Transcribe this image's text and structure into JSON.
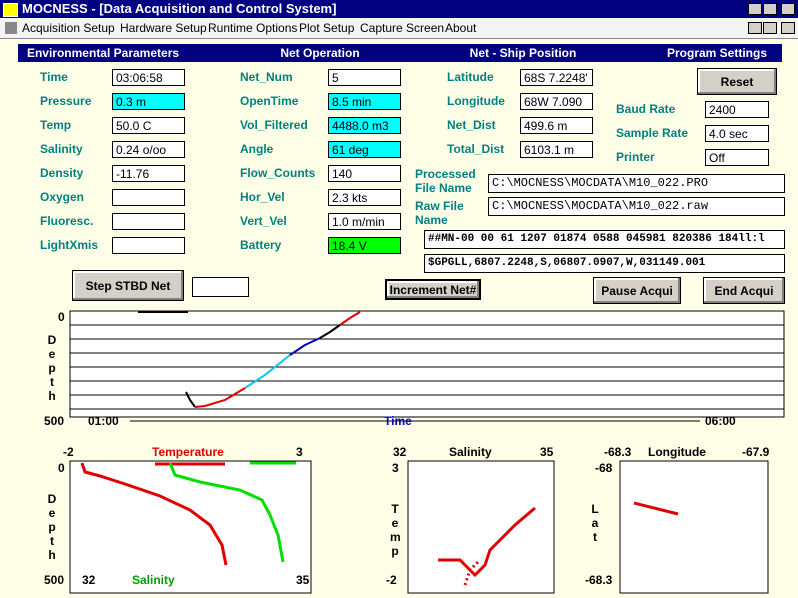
{
  "title": "MOCNESS - [Data Acquisition and Control System]",
  "menu": [
    "Acquisition Setup",
    "Hardware Setup",
    "Runtime Options",
    "Plot Setup",
    "Capture Screen",
    "About"
  ],
  "sections": [
    "Environmental Parameters",
    "Net Operation",
    "Net - Ship Position",
    "Program Settings"
  ],
  "environmental": [
    {
      "label": "Time",
      "value": "03:06:58"
    },
    {
      "label": "Pressure",
      "value": "0.3 m",
      "color": "#00ffff"
    },
    {
      "label": "Temp",
      "value": "50.0 C"
    },
    {
      "label": "Salinity",
      "value": "0.24 o/oo"
    },
    {
      "label": "Density",
      "value": "-11.76"
    },
    {
      "label": "Oxygen"
    },
    {
      "label": "Fluoresc."
    },
    {
      "label": "LightXmis"
    }
  ],
  "net_operation": [
    {
      "label": "Net_Num",
      "value": "5"
    },
    {
      "label": "OpenTime",
      "value": "8.5 min",
      "color": "#00ffff"
    },
    {
      "label": "Vol_Filtered",
      "value": "4488.0 m3",
      "color": "#00ffff"
    },
    {
      "label": "Angle",
      "value": "61 deg",
      "color": "#00ffff"
    },
    {
      "label": "Flow_Counts",
      "value": "140"
    },
    {
      "label": "Hor_Vel",
      "value": "2.3 kts"
    },
    {
      "label": "Vert_Vel",
      "value": "1.0 m/min"
    },
    {
      "label": "Battery",
      "value": "18.4 V",
      "color": "#00ff00"
    }
  ],
  "position": [
    {
      "label": "Latitude",
      "value": "68S 7.2248'"
    },
    {
      "label": "Longitude",
      "value": "68W 7.090"
    },
    {
      "label": "Net_Dist",
      "value": "499.6 m"
    },
    {
      "label": "Total_Dist",
      "value": "6103.1 m"
    }
  ],
  "settings": [
    {
      "label": "Baud Rate",
      "value": "2400"
    },
    {
      "label": "Sample Rate",
      "value": "4.0 sec"
    },
    {
      "label": "Printer",
      "value": "Off"
    }
  ],
  "buttons": {
    "reset": "Reset",
    "step": "Step STBD Net",
    "increment": "Increment Net#",
    "pause": "Pause Acqui",
    "end": "End Acqui"
  },
  "files": {
    "processed_label": "Processed File Name",
    "processed": "C:\\MOCNESS\\MOCDATA\\M10_022.PRO",
    "raw_label": "Raw File Name",
    "raw": "C:\\MOCNESS\\MOCDATA\\M10_022.raw"
  },
  "streams": [
    "##MN-00 00 61 1207 01874 0588 045981 820386 184ll:l",
    "$GPGLL,6807.2248,S,06807.0907,W,031149.001"
  ],
  "depth_plot": {
    "ylabel": "Depth",
    "ytop": "0",
    "ybottom": "500",
    "xstart": "01:00",
    "xlabel": "Time",
    "xend": "06:00"
  },
  "profile_plot": {
    "top_left": "-2",
    "top_label": "Temperature",
    "top_right": "3",
    "bottom_left": "32",
    "bottom_label": "Salinity",
    "bottom_right": "35",
    "ytop": "0",
    "ybottom": "500",
    "ylabel": "Depth"
  },
  "ts_plot": {
    "top_left": "32",
    "top_label": "Salinity",
    "top_right": "35",
    "ytop": "3",
    "ybottom": "-2",
    "ylabel": "Temp"
  },
  "track_plot": {
    "top_left": "-68.3",
    "top_label": "Longitude",
    "top_right": "-67.9",
    "ytop": "-68",
    "ybottom": "-68.3",
    "ylabel": "Lat"
  }
}
